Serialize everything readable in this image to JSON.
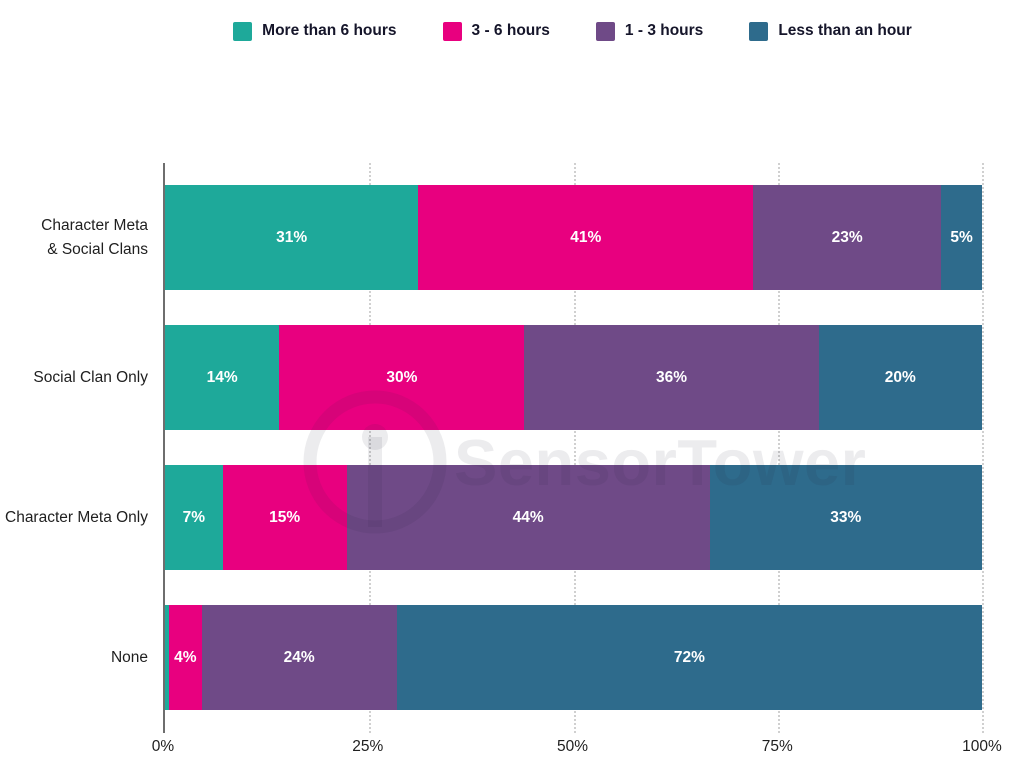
{
  "watermark": {
    "text": "SensorTower"
  },
  "chart_data": {
    "type": "bar",
    "orientation": "horizontal",
    "stacked": true,
    "title": "",
    "xlabel": "",
    "ylabel": "",
    "unit": "%",
    "xlim": [
      0,
      100
    ],
    "x_ticks": [
      "0%",
      "25%",
      "50%",
      "75%",
      "100%"
    ],
    "grid": "vertical-dotted",
    "legend_position": "top-center",
    "bar_label_color": "#ffffff",
    "series": [
      {
        "name": "More than 6 hours",
        "color": "#1EA99A"
      },
      {
        "name": "3 - 6 hours",
        "color": "#E8007F"
      },
      {
        "name": "1 - 3 hours",
        "color": "#6F4A87"
      },
      {
        "name": "Less than an hour",
        "color": "#2E6B8C"
      }
    ],
    "rows": [
      {
        "category": "Character Meta\n& Social Clans",
        "segments": [
          {
            "series": "More than 6 hours",
            "value": 31,
            "label": "31%"
          },
          {
            "series": "3 - 6 hours",
            "value": 41,
            "label": "41%"
          },
          {
            "series": "1 - 3 hours",
            "value": 23,
            "label": "23%"
          },
          {
            "series": "Less than an hour",
            "value": 5,
            "label": "5%"
          }
        ]
      },
      {
        "category": "Social Clan Only",
        "segments": [
          {
            "series": "More than 6 hours",
            "value": 14,
            "label": "14%"
          },
          {
            "series": "3 - 6 hours",
            "value": 30,
            "label": "30%"
          },
          {
            "series": "1 - 3 hours",
            "value": 36,
            "label": "36%"
          },
          {
            "series": "Less than an hour",
            "value": 20,
            "label": "20%"
          }
        ]
      },
      {
        "category": "Character Meta Only",
        "segments": [
          {
            "series": "More than 6 hours",
            "value": 7,
            "label": "7%"
          },
          {
            "series": "3 - 6 hours",
            "value": 15,
            "label": "15%"
          },
          {
            "series": "1 - 3 hours",
            "value": 44,
            "label": "44%"
          },
          {
            "series": "Less than an hour",
            "value": 33,
            "label": "33%"
          }
        ]
      },
      {
        "category": "None",
        "segments": [
          {
            "series": "More than 6 hours",
            "value": 0.5,
            "label": ""
          },
          {
            "series": "3 - 6 hours",
            "value": 4,
            "label": "4%"
          },
          {
            "series": "1 - 3 hours",
            "value": 24,
            "label": "24%"
          },
          {
            "series": "Less than an hour",
            "value": 72,
            "label": "72%"
          }
        ]
      }
    ]
  }
}
